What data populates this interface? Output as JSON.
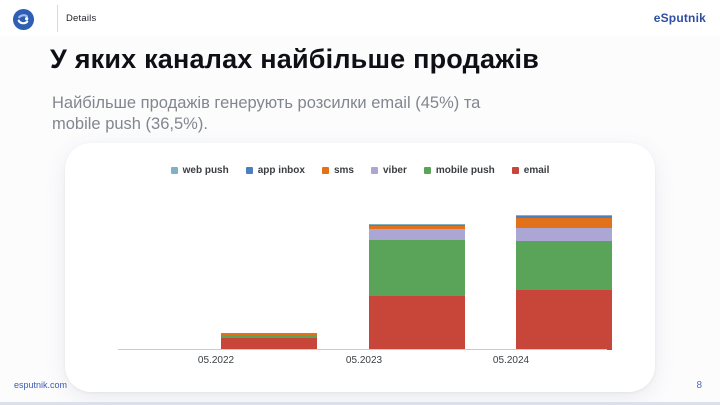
{
  "header": {
    "app_label": "Details",
    "brand": "eSputnik"
  },
  "slide": {
    "title": "У яких каналах найбільше продажів",
    "subtitle": "Найбільше продажів генерують розсилки email (45%) та mobile push (36,5%).",
    "footer_link": "esputnik.com",
    "page_number": "8"
  },
  "colors": {
    "brand_blue": "#2d4ea3",
    "title_text": "#0e1015",
    "subtitle_text": "#82868e",
    "axis_line": "#c8cbd0"
  },
  "chart_data": {
    "type": "bar",
    "stacked": true,
    "title": "",
    "xlabel": "",
    "ylabel": "",
    "grid": false,
    "legend_position": "top",
    "unit": "relative sales volume (no y-axis shown), values are approximate pixel heights",
    "categories": [
      "05.2022",
      "05.2023",
      "05.2024"
    ],
    "series": [
      {
        "name": "web push",
        "color": "#7fb2c4",
        "values": [
          0,
          1,
          1
        ]
      },
      {
        "name": "app inbox",
        "color": "#4c7fc0",
        "values": [
          0,
          1,
          2
        ]
      },
      {
        "name": "sms",
        "color": "#e2711b",
        "values": [
          2,
          3,
          10
        ]
      },
      {
        "name": "viber",
        "color": "#aba6d3",
        "values": [
          0,
          11,
          13
        ]
      },
      {
        "name": "mobile push",
        "color": "#5aa45a",
        "values": [
          3,
          56,
          49
        ]
      },
      {
        "name": "email",
        "color": "#c8453a",
        "values": [
          12,
          54,
          60
        ]
      }
    ]
  }
}
